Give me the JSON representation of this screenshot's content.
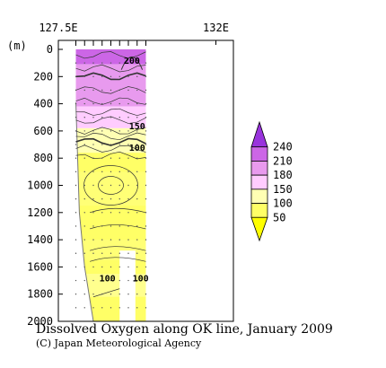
{
  "chart_data": {
    "type": "heatmap",
    "title": "Dissolved Oxygen along OK line, January 2009",
    "credit": "(C) Japan Meteorological Agency",
    "xlabel": "",
    "ylabel": "(m)",
    "x_axis": {
      "range": [
        127.5,
        132.5
      ],
      "tick_labels": [
        {
          "value": 127.5,
          "label": "127.5E"
        },
        {
          "value": 132,
          "label": "132E"
        }
      ],
      "station_longitudes": [
        128.0,
        128.25,
        128.5,
        128.75,
        129.0,
        129.25,
        129.5,
        129.75,
        130.0
      ]
    },
    "y_axis": {
      "range": [
        0,
        2000
      ],
      "inverted": true,
      "ticks": [
        0,
        200,
        400,
        600,
        800,
        1000,
        1200,
        1400,
        1600,
        1800,
        2000
      ]
    },
    "colorbar": {
      "levels": [
        50,
        100,
        150,
        180,
        210,
        240
      ],
      "labels": [
        "240",
        "210",
        "180",
        "150",
        "100",
        "50"
      ],
      "colors": [
        {
          "from": 0,
          "to": 50,
          "color": "#ffff00"
        },
        {
          "from": 50,
          "to": 100,
          "color": "#ffff66"
        },
        {
          "from": 100,
          "to": 150,
          "color": "#ffffb3"
        },
        {
          "from": 150,
          "to": 180,
          "color": "#ffccff"
        },
        {
          "from": 180,
          "to": 210,
          "color": "#e89aee"
        },
        {
          "from": 210,
          "to": 240,
          "color": "#cc66e6"
        },
        {
          "from": 240,
          "to": 300,
          "color": "#9933dd"
        }
      ]
    },
    "section": {
      "lon_min": 128.0,
      "lon_max": 130.0,
      "layers": [
        {
          "top": 0,
          "bottom": 110,
          "color": "#cc66e6"
        },
        {
          "top": 110,
          "bottom": 420,
          "color": "#e89aee"
        },
        {
          "top": 420,
          "bottom": 580,
          "color": "#ffccff"
        },
        {
          "top": 580,
          "bottom": 760,
          "color": "#ffffb3"
        },
        {
          "top": 760,
          "bottom": 2000,
          "color": "#ffff66"
        }
      ],
      "seabed": [
        {
          "lon": 128.0,
          "depth": 390
        },
        {
          "lon": 128.1,
          "depth": 1200
        },
        {
          "lon": 128.25,
          "depth": 1600
        },
        {
          "lon": 128.5,
          "depth": 2000
        },
        {
          "lon": 129.0,
          "depth": 2000
        }
      ],
      "missing_blocks": [
        {
          "lon_from": 129.25,
          "lon_to": 129.7,
          "depth_from": 1480,
          "depth_to": 2000
        }
      ],
      "contour_labels": [
        {
          "text": "200",
          "lon": 129.6,
          "depth": 80
        },
        {
          "text": "150",
          "lon": 129.75,
          "depth": 560
        },
        {
          "text": "100",
          "lon": 129.75,
          "depth": 720
        },
        {
          "text": "100",
          "lon": 128.9,
          "depth": 1680
        },
        {
          "text": "100",
          "lon": 129.85,
          "depth": 1680
        }
      ]
    }
  }
}
